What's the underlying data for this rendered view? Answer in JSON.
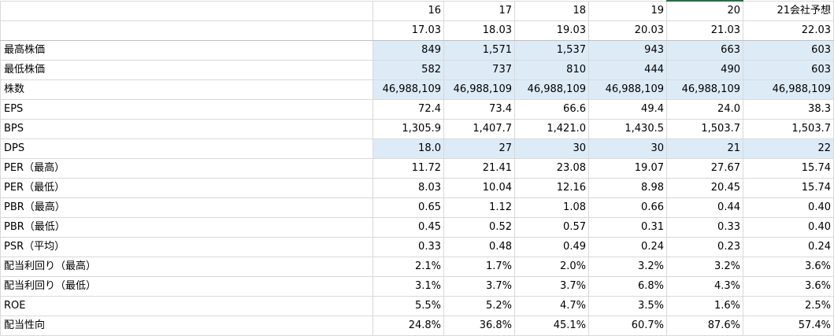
{
  "sheet": {
    "header_rows": [
      [
        "",
        "16",
        "17",
        "18",
        "19",
        "20",
        "21会社予想"
      ],
      [
        "",
        "17.03",
        "18.03",
        "19.03",
        "20.03",
        "21.03",
        "22.03"
      ]
    ],
    "rows": [
      {
        "label": "最高株価",
        "shaded": true,
        "values": [
          "849",
          "1,571",
          "1,537",
          "943",
          "663",
          "603"
        ]
      },
      {
        "label": "最低株価",
        "shaded": true,
        "values": [
          "582",
          "737",
          "810",
          "444",
          "490",
          "603"
        ]
      },
      {
        "label": "株数",
        "shaded": true,
        "values": [
          "46,988,109",
          "46,988,109",
          "46,988,109",
          "46,988,109",
          "46,988,109",
          "46,988,109"
        ]
      },
      {
        "label": "EPS",
        "shaded": false,
        "values": [
          "72.4",
          "73.4",
          "66.6",
          "49.4",
          "24.0",
          "38.3"
        ]
      },
      {
        "label": "BPS",
        "shaded": false,
        "values": [
          "1,305.9",
          "1,407.7",
          "1,421.0",
          "1,430.5",
          "1,503.7",
          "1,503.7"
        ]
      },
      {
        "label": "DPS",
        "shaded": true,
        "values": [
          "18.0",
          "27",
          "30",
          "30",
          "21",
          "22"
        ]
      },
      {
        "label": "PER（最高）",
        "shaded": false,
        "values": [
          "11.72",
          "21.41",
          "23.08",
          "19.07",
          "27.67",
          "15.74"
        ]
      },
      {
        "label": "PER（最低）",
        "shaded": false,
        "values": [
          "8.03",
          "10.04",
          "12.16",
          "8.98",
          "20.45",
          "15.74"
        ]
      },
      {
        "label": "PBR（最高）",
        "shaded": false,
        "values": [
          "0.65",
          "1.12",
          "1.08",
          "0.66",
          "0.44",
          "0.40"
        ]
      },
      {
        "label": "PBR（最低）",
        "shaded": false,
        "values": [
          "0.45",
          "0.52",
          "0.57",
          "0.31",
          "0.33",
          "0.40"
        ]
      },
      {
        "label": "PSR（平均）",
        "shaded": false,
        "values": [
          "0.33",
          "0.48",
          "0.49",
          "0.24",
          "0.23",
          "0.24"
        ]
      },
      {
        "label": "配当利回り（最高）",
        "shaded": false,
        "values": [
          "2.1%",
          "1.7%",
          "2.0%",
          "3.2%",
          "3.2%",
          "3.6%"
        ]
      },
      {
        "label": "配当利回り（最低）",
        "shaded": false,
        "values": [
          "3.1%",
          "3.7%",
          "3.7%",
          "6.8%",
          "4.3%",
          "3.6%"
        ]
      },
      {
        "label": "ROE",
        "shaded": false,
        "values": [
          "5.5%",
          "5.2%",
          "4.7%",
          "3.5%",
          "1.6%",
          "2.5%"
        ]
      },
      {
        "label": "配当性向",
        "shaded": false,
        "values": [
          "24.8%",
          "36.8%",
          "45.1%",
          "60.7%",
          "87.6%",
          "57.4%"
        ]
      }
    ]
  }
}
